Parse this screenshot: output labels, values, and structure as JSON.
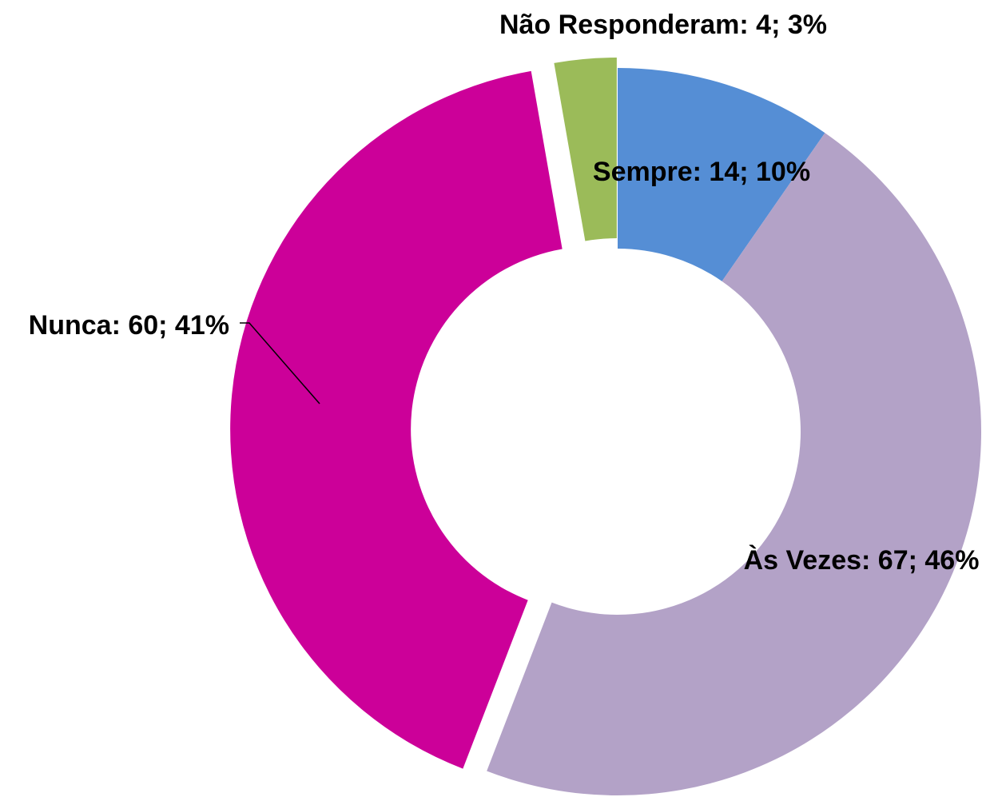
{
  "chart_data": {
    "type": "pie",
    "values": [
      14,
      67,
      60,
      4
    ],
    "value_labels": [
      "Sempre: 14; 10%",
      "Às Vezes: 67; 46%",
      "Nunca: 60; 41%",
      "Não Responderam: 4; 3%"
    ],
    "colors": [
      "#558ed5",
      "#b3a2c7",
      "#cc0099",
      "#9bbb59"
    ]
  }
}
